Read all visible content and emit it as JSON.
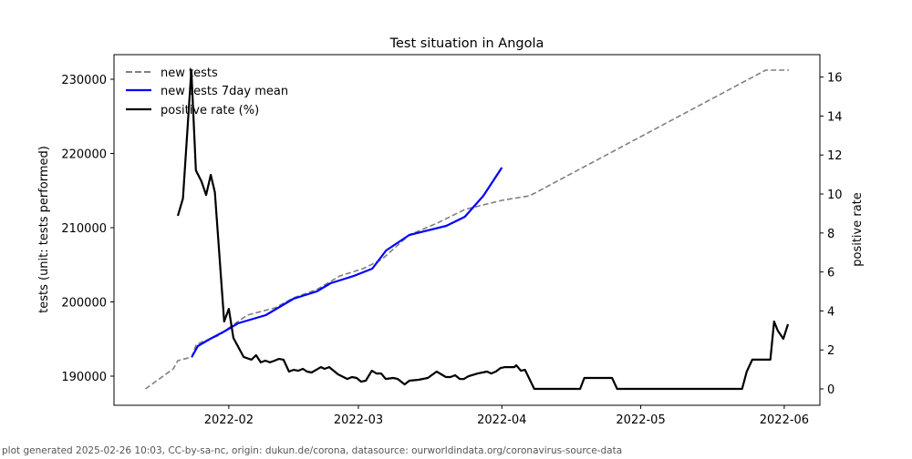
{
  "chart_data": {
    "type": "line",
    "title": "Test situation in Angola",
    "x_origin": "2022-01-01",
    "x_unit": "days since 2022-01-01",
    "xlim": [
      6.2,
      158.7
    ],
    "x_ticks": [
      {
        "day": 31,
        "label": "2022-02"
      },
      {
        "day": 59,
        "label": "2022-03"
      },
      {
        "day": 90,
        "label": "2022-04"
      },
      {
        "day": 120,
        "label": "2022-05"
      },
      {
        "day": 151,
        "label": "2022-06"
      }
    ],
    "ylabel_left": "tests (unit: tests performed)",
    "ylim_left": [
      186074,
      233313
    ],
    "yticks_left": [
      190000,
      200000,
      210000,
      220000,
      230000
    ],
    "ylabel_right": "positive rate",
    "ylim_right": [
      -0.84,
      17.15
    ],
    "yticks_right": [
      0,
      2,
      4,
      6,
      8,
      10,
      12,
      14,
      16
    ],
    "legend_position": "top-left",
    "series": [
      {
        "name": "new tests",
        "axis": "left",
        "color": "#808080",
        "style": "dashed",
        "x": [
          13,
          19,
          20,
          23,
          24,
          29,
          31,
          35,
          41,
          45,
          50,
          55,
          60,
          64,
          70,
          76,
          82,
          90,
          96,
          147,
          152
        ],
        "y": [
          188282,
          190980,
          192090,
          192580,
          194290,
          195520,
          196500,
          198220,
          199200,
          200550,
          201660,
          203500,
          204480,
          205700,
          209020,
          210610,
          212450,
          213680,
          214290,
          231230,
          231230
        ]
      },
      {
        "name": "new tests 7day mean",
        "axis": "left",
        "color": "#0000ff",
        "style": "solid",
        "x": [
          23,
          24.3,
          27,
          30,
          33,
          39,
          41,
          45,
          50,
          53,
          58,
          62,
          65,
          70,
          78,
          82,
          86,
          90
        ],
        "y": [
          192580,
          194050,
          195030,
          196010,
          197120,
          198220,
          198960,
          200430,
          201410,
          202520,
          203500,
          204480,
          206930,
          209020,
          210250,
          211470,
          214290,
          218100
        ]
      },
      {
        "name": "positive rate (%)",
        "axis": "right",
        "color": "#000000",
        "style": "solid",
        "x": [
          20,
          21.1,
          22.9,
          23.9,
          25.1,
          26.1,
          27.1,
          28,
          30,
          31,
          32,
          34.2,
          35.9,
          36.9,
          37.9,
          38.9,
          39.9,
          40.9,
          41.8,
          42.8,
          44,
          45,
          46,
          47,
          47.9,
          48.9,
          49.9,
          50.9,
          51.7,
          52.7,
          54.6,
          56.6,
          57.6,
          58.6,
          59.6,
          60.6,
          61.9,
          62.9,
          63.9,
          64.9,
          66.5,
          67.5,
          69,
          70,
          72,
          74,
          75.9,
          76.9,
          77.9,
          78.9,
          79.9,
          80.9,
          81.8,
          82.8,
          84.8,
          85.8,
          86.8,
          87.7,
          88.7,
          89.7,
          90.7,
          91.7,
          92.7,
          93.1,
          94.1,
          95,
          97,
          106.9,
          107.8,
          113.8,
          114.9,
          141.9,
          142.9,
          144.1,
          148,
          148.8,
          149.6,
          150.8,
          151.8
        ],
        "y": [
          8.88,
          9.77,
          16.36,
          11.21,
          10.65,
          9.95,
          10.98,
          10.09,
          3.46,
          4.11,
          2.62,
          1.64,
          1.5,
          1.73,
          1.36,
          1.45,
          1.36,
          1.45,
          1.54,
          1.5,
          0.89,
          0.98,
          0.93,
          1.03,
          0.89,
          0.84,
          0.98,
          1.12,
          1.03,
          1.12,
          0.75,
          0.51,
          0.61,
          0.56,
          0.37,
          0.42,
          0.93,
          0.79,
          0.79,
          0.51,
          0.56,
          0.51,
          0.23,
          0.42,
          0.47,
          0.56,
          0.89,
          0.75,
          0.61,
          0.61,
          0.7,
          0.51,
          0.51,
          0.65,
          0.79,
          0.84,
          0.89,
          0.79,
          0.89,
          1.07,
          1.12,
          1.12,
          1.12,
          1.21,
          0.93,
          0.98,
          0,
          0,
          0.56,
          0.56,
          0,
          0,
          0.89,
          1.5,
          1.5,
          3.46,
          2.99,
          2.57,
          3.32
        ]
      }
    ]
  },
  "footer": "plot generated 2025-02-26 10:03, CC-by-sa-nc, origin: dukun.de/corona, datasource: ourworldindata.org/coronavirus-source-data"
}
